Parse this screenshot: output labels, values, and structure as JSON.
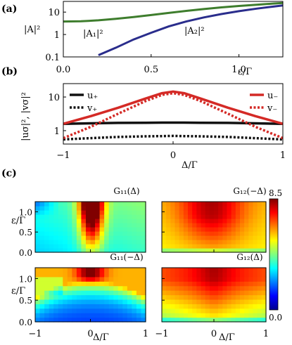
{
  "panel_letters": [
    "(a)",
    "(b)",
    "(c)"
  ],
  "chart_data": [
    {
      "panel": "(a)",
      "type": "line",
      "yscale": "log",
      "ylabel": "|A|²",
      "xlabel": "ε/Γ",
      "xlim": [
        0,
        1.25
      ],
      "ylim": [
        0.1,
        30
      ],
      "x_ticks": [
        0.0,
        0.5,
        1.0
      ],
      "x_tick_labels": [
        "0.0",
        "0.5",
        "1.0"
      ],
      "y_ticks": [
        0.1,
        1,
        10
      ],
      "y_tick_labels": [
        "0.1",
        "1",
        "10"
      ],
      "x": [
        0.0,
        0.1,
        0.2,
        0.3,
        0.4,
        0.5,
        0.6,
        0.7,
        0.8,
        0.9,
        1.0,
        1.1,
        1.2,
        1.25
      ],
      "series": [
        {
          "name": "|A₁|²",
          "color": "#3e7d2d",
          "values": [
            3.8,
            3.9,
            4.3,
            5.0,
            6.0,
            7.4,
            9.2,
            11.3,
            13.7,
            16.2,
            18.8,
            21.4,
            24.2,
            25.5
          ]
        },
        {
          "name": "|A₂|²",
          "color": "#2a2d8c",
          "values": [
            null,
            null,
            0.12,
            0.26,
            0.6,
            1.2,
            2.3,
            3.8,
            5.8,
            8.2,
            11.0,
            14.3,
            17.8,
            19.7
          ]
        }
      ],
      "annotations": [
        "|A₁|²",
        "|A₂|²"
      ]
    },
    {
      "panel": "(b)",
      "type": "line",
      "yscale": "log",
      "ylabel": "|uσ|², |vσ|²",
      "xlabel": "Δ/Γ",
      "xlim": [
        -1,
        1
      ],
      "ylim": [
        0.4,
        25
      ],
      "x_ticks": [
        -1,
        0,
        1
      ],
      "x_tick_labels": [
        "−1",
        "0",
        "1"
      ],
      "y_ticks": [
        1,
        10
      ],
      "y_tick_labels": [
        "1",
        "10"
      ],
      "x": [
        -1.0,
        -0.75,
        -0.5,
        -0.25,
        -0.1,
        0.0,
        0.1,
        0.25,
        0.5,
        0.75,
        1.0
      ],
      "series": [
        {
          "name": "u₊",
          "color": "#111111",
          "dash": "solid",
          "values": [
            1.6,
            1.65,
            1.7,
            1.72,
            1.73,
            1.73,
            1.73,
            1.72,
            1.7,
            1.65,
            1.6
          ]
        },
        {
          "name": "v₊",
          "color": "#111111",
          "dash": "dotted",
          "values": [
            0.55,
            0.6,
            0.65,
            0.68,
            0.69,
            0.7,
            0.69,
            0.68,
            0.65,
            0.6,
            0.55
          ]
        },
        {
          "name": "u₋",
          "color": "#d42a26",
          "dash": "solid",
          "values": [
            1.6,
            2.7,
            4.8,
            9.0,
            13.0,
            14.5,
            13.0,
            9.0,
            4.8,
            2.7,
            1.6
          ]
        },
        {
          "name": "v₋",
          "color": "#d42a26",
          "dash": "dotted",
          "values": [
            0.6,
            1.3,
            3.2,
            7.6,
            11.6,
            13.0,
            11.6,
            7.6,
            3.2,
            1.3,
            0.6
          ]
        }
      ],
      "legend": [
        "u₊",
        "v₊",
        "u₋",
        "v₋"
      ]
    },
    {
      "panel": "(c)",
      "type": "heatmap",
      "colorscale": "jet",
      "zlim": [
        0.0,
        8.5
      ],
      "colorbar_tick_labels": [
        "8.5",
        "0.0"
      ],
      "xlabel": "Δ/Γ",
      "ylabel": "ε/Γ",
      "xlim": [
        -1,
        1
      ],
      "ylim": [
        0.0,
        1.25
      ],
      "x_ticks": [
        -1,
        0,
        1
      ],
      "x_tick_labels": [
        "−1",
        "0",
        "1"
      ],
      "y_ticks": [
        0.0,
        0.5,
        1.0
      ],
      "y_tick_labels": [
        "0.0",
        "0.5",
        "1.0"
      ],
      "panels": [
        {
          "title": "G₁₁(Δ)"
        },
        {
          "title": "G₁₂(−Δ)"
        },
        {
          "title": "G₁₁(−Δ)"
        },
        {
          "title": "G₁₂(Δ)"
        }
      ]
    }
  ]
}
